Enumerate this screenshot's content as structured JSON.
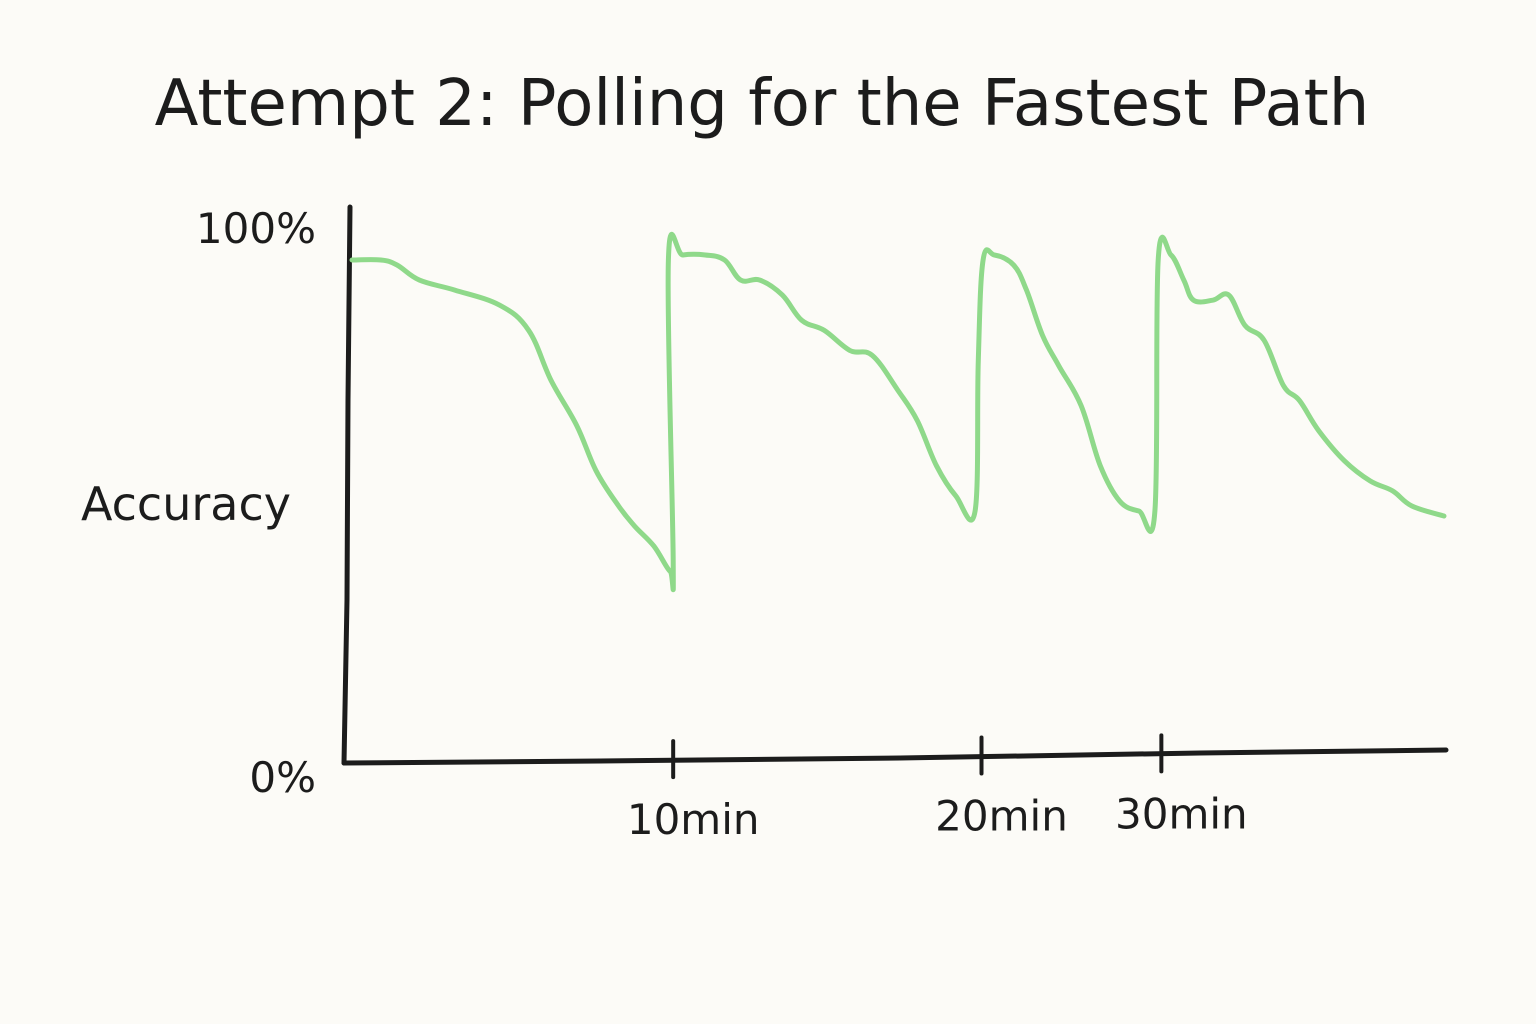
{
  "chart_data": {
    "type": "line",
    "title": "Attempt 2: Polling for the Fastest Path",
    "xlabel": "",
    "ylabel": "Accuracy",
    "xlim": [
      0,
      34
    ],
    "ylim": [
      0,
      100
    ],
    "x_ticks": [
      {
        "value": 10,
        "label": "10min"
      },
      {
        "value": 19.6,
        "label": "20min"
      },
      {
        "value": 25.2,
        "label": "30min"
      }
    ],
    "y_ticks": [
      {
        "value": 0,
        "label": "0%"
      },
      {
        "value": 100,
        "label": "100%"
      }
    ],
    "grid": false,
    "legend": "none",
    "series": [
      {
        "color": "#8fd98a",
        "x": [
          0,
          0.9,
          1.4,
          2.1,
          3.2,
          4.6,
          5.5,
          6.2,
          7.0,
          7.6,
          8.3,
          8.8,
          9.4,
          9.9,
          10.0,
          9.85,
          10.3,
          11.0,
          11.6,
          12.1,
          12.7,
          13.4,
          14.0,
          14.7,
          15.5,
          16.2,
          17.0,
          17.6,
          18.2,
          18.8,
          19.4,
          19.5,
          19.65,
          20.0,
          20.6,
          21.0,
          21.5,
          22.0,
          22.7,
          23.3,
          23.9,
          24.5,
          25.0,
          25.1,
          25.5,
          25.9,
          26.2,
          26.8,
          27.3,
          27.8,
          28.4,
          29.0,
          29.5,
          30.1,
          30.9,
          31.7,
          32.4,
          33.0,
          34.0
        ],
        "y": [
          100,
          100,
          99,
          96,
          94,
          91,
          86,
          76,
          67,
          58,
          51,
          47,
          43,
          38,
          40,
          100,
          101,
          101,
          100,
          96,
          96,
          93,
          88,
          86,
          82,
          81,
          74,
          68,
          59,
          53,
          50,
          80,
          100,
          101,
          99,
          94,
          85,
          79,
          71,
          59,
          52,
          50,
          50,
          100,
          101,
          96,
          92,
          92,
          93,
          87,
          84,
          75,
          72,
          66,
          60,
          56,
          54,
          51,
          49
        ]
      }
    ]
  }
}
